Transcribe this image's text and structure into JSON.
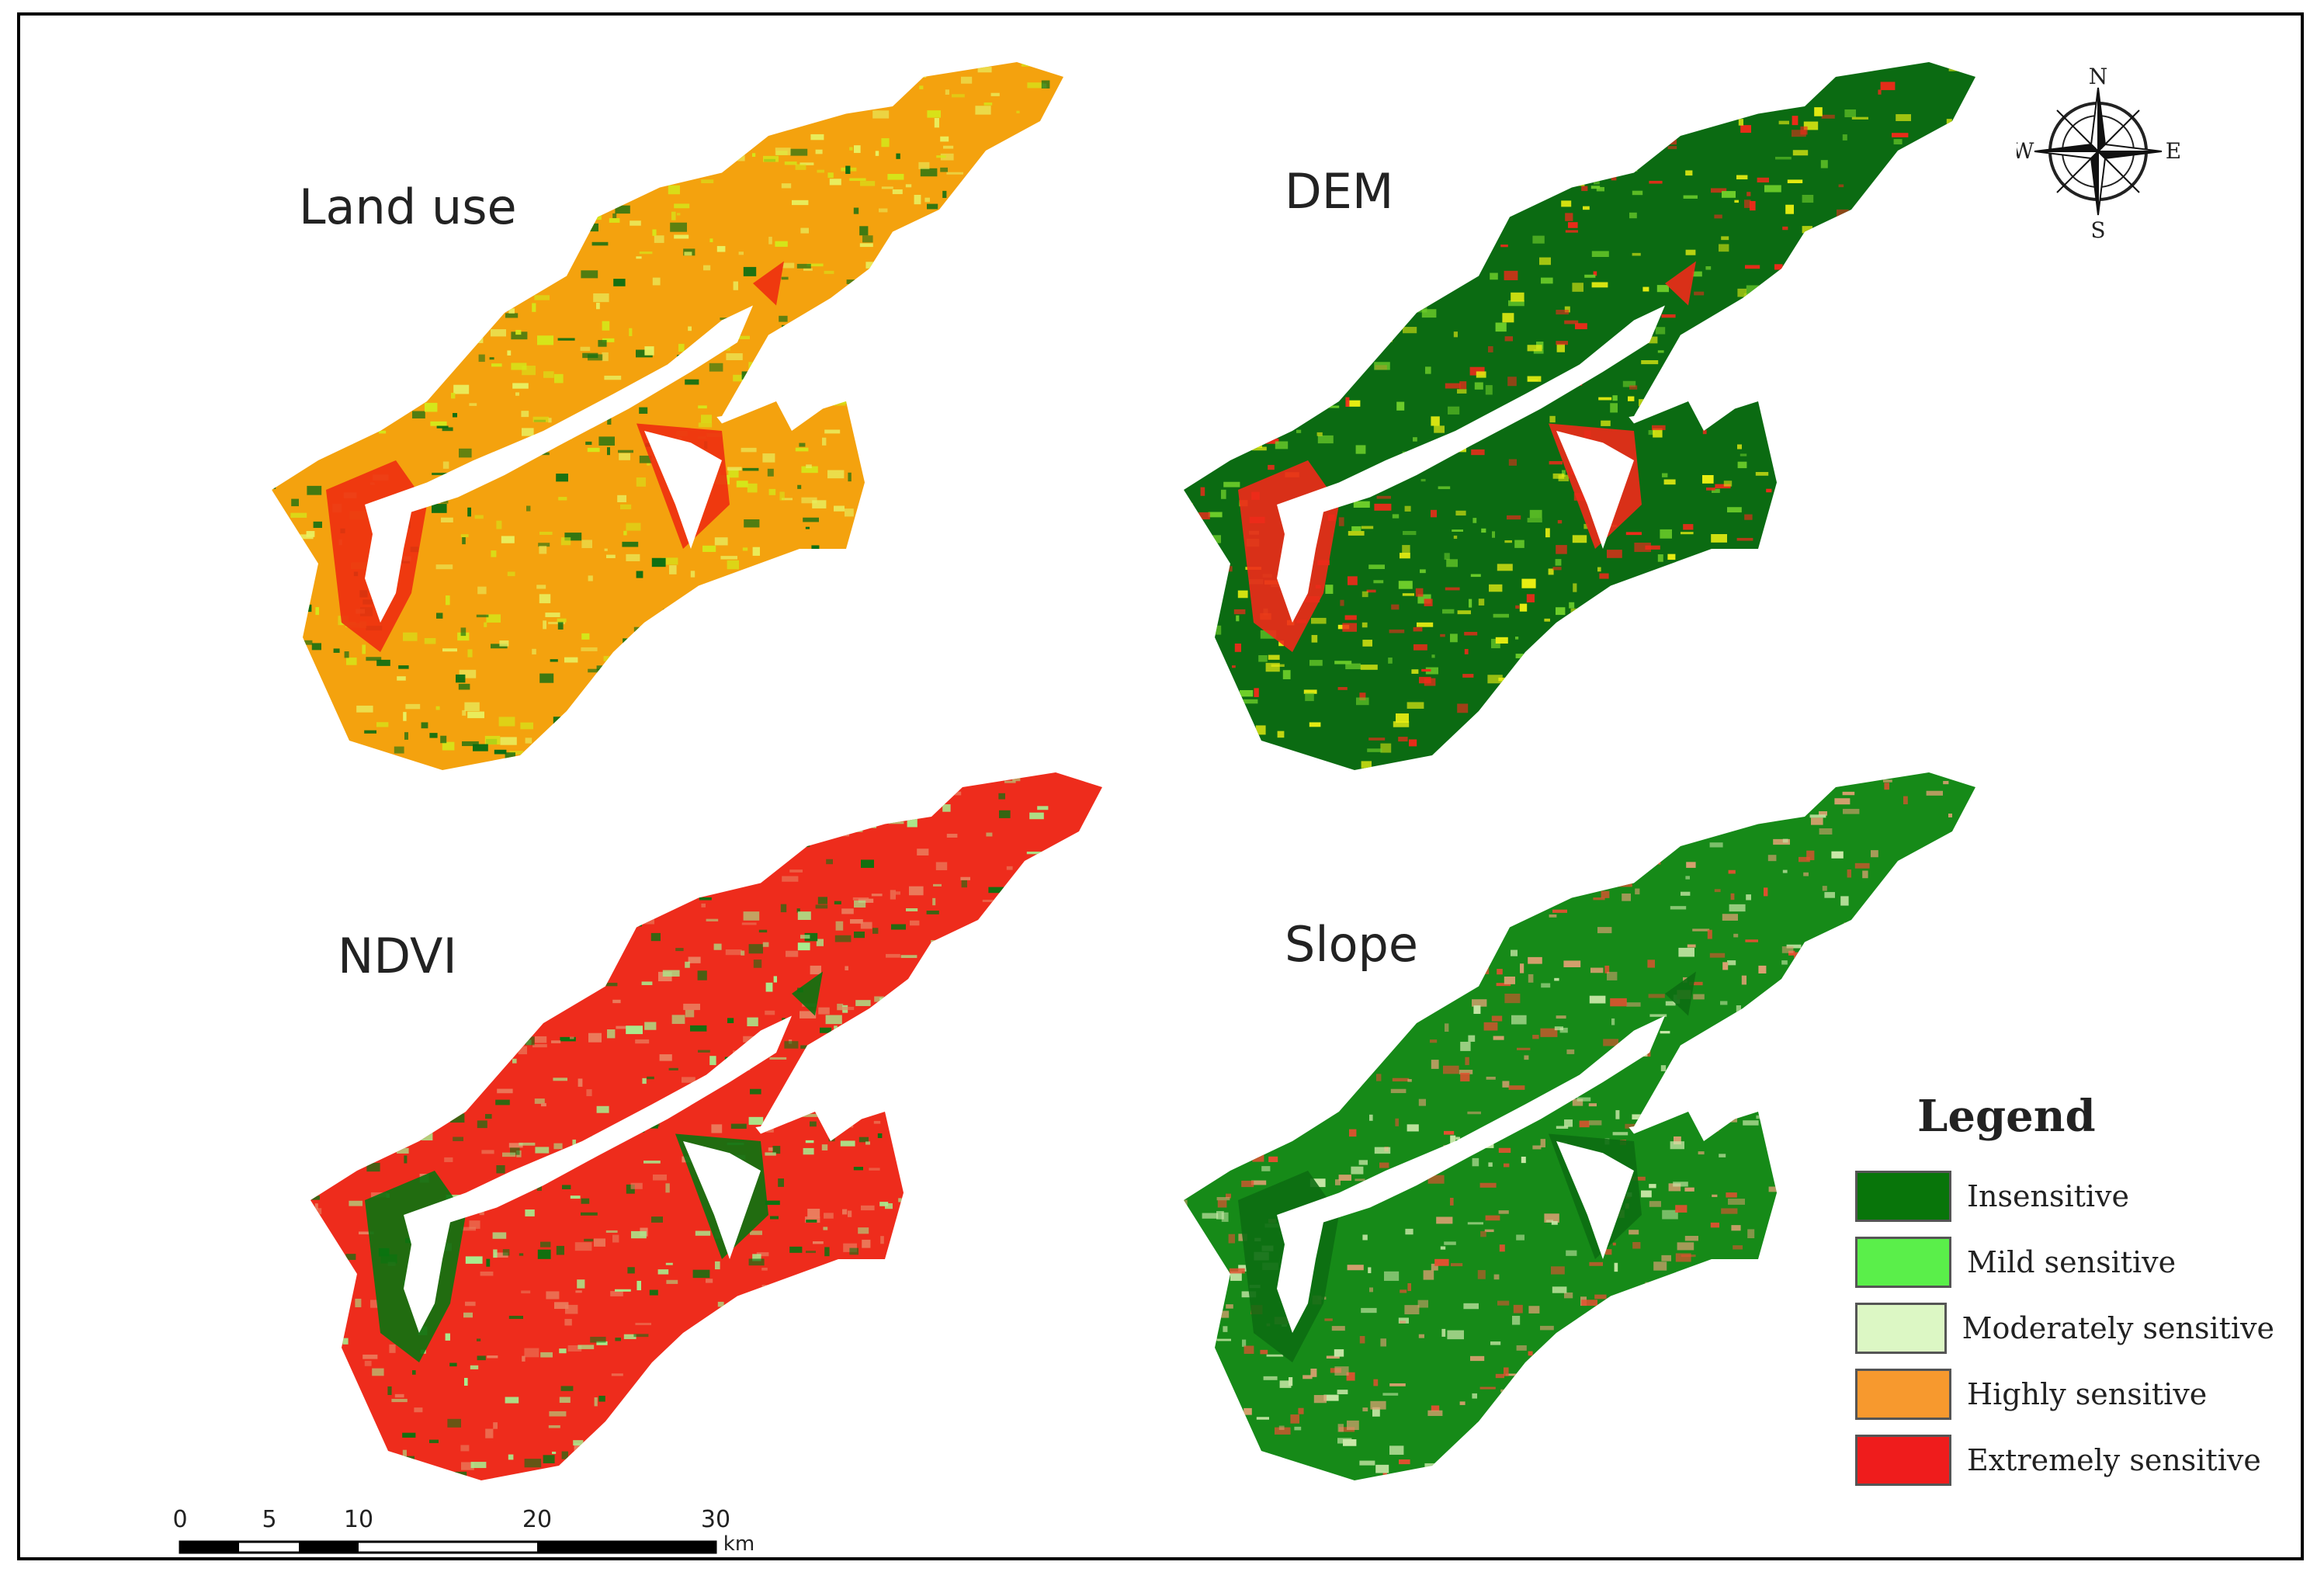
{
  "panels": [
    {
      "id": "landuse",
      "label": "Land use",
      "base": "#f4a20e",
      "texture": [
        "#d4e81a",
        "#0c6e12",
        "#e8f060"
      ],
      "accent": "#ee2d10"
    },
    {
      "id": "dem",
      "label": "DEM",
      "base": "#0b6b12",
      "texture": [
        "#e8ee12",
        "#6fd02b",
        "#ef2a1a"
      ],
      "accent": "#ef2a1a"
    },
    {
      "id": "ndvi",
      "label": "NDVI",
      "base": "#ee2c1c",
      "texture": [
        "#a8ec8e",
        "#ea8060",
        "#0a7310"
      ],
      "accent": "#0a7310"
    },
    {
      "id": "slope",
      "label": "Slope",
      "base": "#168a18",
      "texture": [
        "#c9e8a8",
        "#d9a070",
        "#e35030"
      ],
      "accent": "#0c6d12"
    }
  ],
  "legend": {
    "title": "Legend",
    "items": [
      {
        "label": "Insensitive",
        "color": "#08750a"
      },
      {
        "label": "Mild sensitive",
        "color": "#5aef4a"
      },
      {
        "label": "Moderately sensitive",
        "color": "#dcf7c4"
      },
      {
        "label": "Highly sensitive",
        "color": "#f7992e"
      },
      {
        "label": "Extremely sensitive",
        "color": "#ef1c1c"
      }
    ]
  },
  "compass": {
    "n": "N",
    "s": "S",
    "e": "E",
    "w": "W"
  },
  "scalebar": {
    "ticks": [
      "0",
      "5",
      "10",
      "20",
      "30"
    ],
    "unit": "km"
  }
}
